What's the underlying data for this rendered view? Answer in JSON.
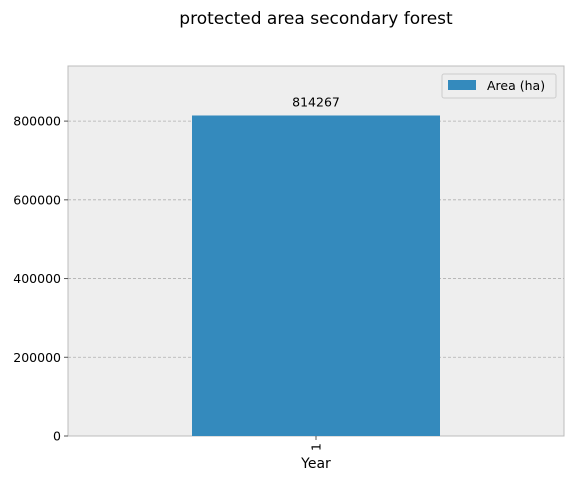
{
  "chart_data": {
    "type": "bar",
    "title": "protected area secondary forest",
    "xlabel": "Year",
    "ylabel": "",
    "categories": [
      "1"
    ],
    "series": [
      {
        "name": "Area (ha)",
        "values": [
          814267
        ],
        "color": "#348abd"
      }
    ],
    "data_labels": [
      "814267"
    ],
    "ylim": [
      0,
      940000
    ],
    "yticks": [
      0,
      200000,
      400000,
      600000,
      800000
    ],
    "ytick_labels": [
      "0",
      "200000",
      "400000",
      "600000",
      "800000"
    ],
    "grid": true,
    "legend_position": "top-right",
    "colors": {
      "plot_background": "#eeeeee",
      "grid": "#b0b0b0",
      "axes_edge": "#bcbcbc",
      "bar": "#348abd"
    }
  }
}
